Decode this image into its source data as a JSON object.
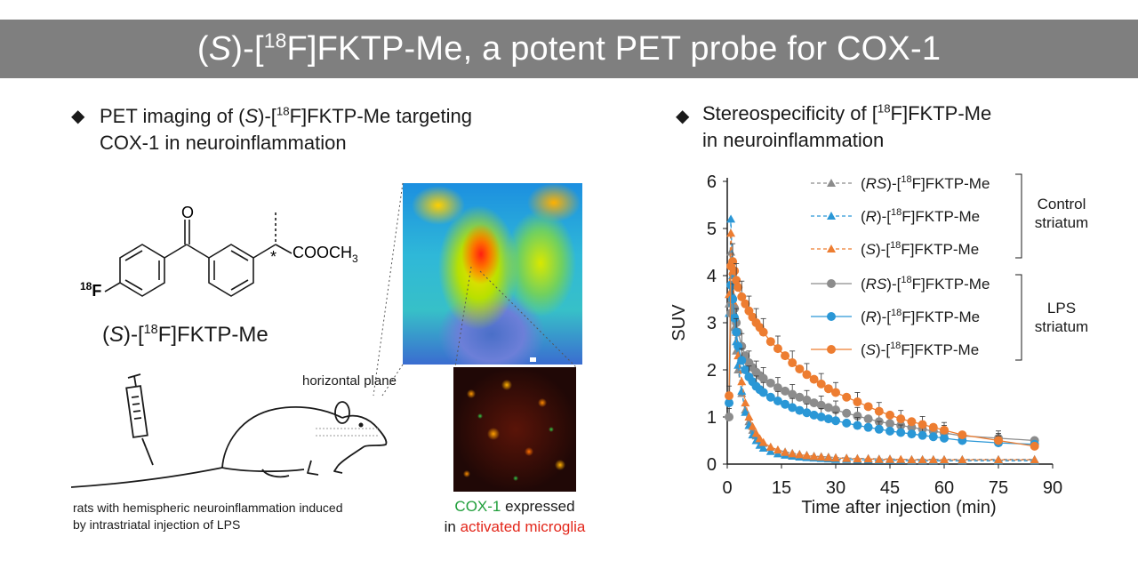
{
  "banner": {
    "title_open": "(",
    "title_S": "S",
    "title_mid": ")-[",
    "title_sup": "18",
    "title_rest": "F]FKTP-Me, a potent PET probe for COX-1"
  },
  "left_section": {
    "heading_pre": "PET imaging of (",
    "heading_S": "S",
    "heading_mid": ")-[",
    "heading_sup": "18",
    "heading_post": "F]FKTP-Me targeting",
    "heading_line2": "COX-1 in neuroinflammation",
    "molecule": {
      "carbonyl_O": "O",
      "ester": "COOCH",
      "ester_sub": "3",
      "stereo": "*",
      "fluorine_sup": "18",
      "fluorine": "F"
    },
    "compound_open": "(",
    "compound_S": "S",
    "compound_mid": ")-[",
    "compound_sup": "18",
    "compound_post": "F]FKTP-Me",
    "plane_label": "horizontal plane",
    "caption_line1": "rats with hemispheric neuroinflammation induced",
    "caption_line2": "by intrastriatal injection of LPS",
    "micro_caption_green": "COX-1",
    "micro_caption_after": " expressed",
    "micro_caption_in": "in ",
    "micro_caption_red": "activated microglia"
  },
  "right_section": {
    "heading_pre": "Stereospecificity of [",
    "heading_sup": "18",
    "heading_post": "F]FKTP-Me",
    "heading_line2": "in neuroinflammation"
  },
  "chart_data": {
    "type": "line",
    "xlabel": "Time after injection (min)",
    "ylabel": "SUV",
    "xlim": [
      0,
      90
    ],
    "ylim": [
      0,
      6
    ],
    "xticks": [
      0,
      15,
      30,
      45,
      60,
      75,
      90
    ],
    "yticks": [
      0,
      1,
      2,
      3,
      4,
      5,
      6
    ],
    "group_labels": [
      {
        "line1": "Control",
        "line2": "striatum"
      },
      {
        "line1": "LPS",
        "line2": "striatum"
      }
    ],
    "series": [
      {
        "name": "(RS)-[18F]FKTP-Me",
        "label_open": "(",
        "label_it": "RS",
        "label_mid": ")-[",
        "label_sup": "18",
        "label_post": "F]FKTP-Me",
        "group": "control",
        "marker": "triangle",
        "dash": true,
        "color": "#8c8c8c",
        "x": [
          0.5,
          1,
          1.5,
          2,
          2.5,
          3,
          4,
          5,
          6,
          7,
          8,
          9,
          10,
          12,
          14,
          16,
          18,
          20,
          22,
          24,
          26,
          28,
          30,
          33,
          36,
          39,
          42,
          45,
          48,
          51,
          54,
          57,
          60,
          65,
          75,
          85
        ],
        "y": [
          3.4,
          4.5,
          3.6,
          2.9,
          2.4,
          2.0,
          1.5,
          1.15,
          0.9,
          0.72,
          0.6,
          0.5,
          0.44,
          0.36,
          0.3,
          0.26,
          0.23,
          0.21,
          0.19,
          0.17,
          0.16,
          0.15,
          0.14,
          0.13,
          0.12,
          0.12,
          0.11,
          0.11,
          0.1,
          0.1,
          0.1,
          0.1,
          0.1,
          0.1,
          0.1,
          0.1
        ]
      },
      {
        "name": "(R)-[18F]FKTP-Me",
        "label_open": "(",
        "label_it": "R",
        "label_mid": ")-[",
        "label_sup": "18",
        "label_post": "F]FKTP-Me",
        "group": "control",
        "marker": "triangle",
        "dash": true,
        "color": "#2a97d6",
        "x": [
          0.5,
          1,
          1.5,
          2,
          2.5,
          3,
          4,
          5,
          6,
          7,
          8,
          9,
          10,
          12,
          14,
          16,
          18,
          20,
          22,
          24,
          26,
          28,
          30,
          33,
          36,
          39,
          42,
          45,
          48,
          51,
          54,
          57,
          60,
          65,
          75,
          85
        ],
        "y": [
          3.2,
          5.2,
          4.0,
          3.2,
          2.6,
          2.1,
          1.55,
          1.1,
          0.82,
          0.62,
          0.5,
          0.4,
          0.34,
          0.27,
          0.22,
          0.19,
          0.17,
          0.15,
          0.14,
          0.13,
          0.12,
          0.11,
          0.1,
          0.1,
          0.09,
          0.09,
          0.08,
          0.08,
          0.08,
          0.07,
          0.07,
          0.07,
          0.07,
          0.07,
          0.07,
          0.07
        ]
      },
      {
        "name": "(S)-[18F]FKTP-Me",
        "label_open": "(",
        "label_it": "S",
        "label_mid": ")-[",
        "label_sup": "18",
        "label_post": "F]FKTP-Me",
        "group": "control",
        "marker": "triangle",
        "dash": true,
        "color": "#ed7d31",
        "x": [
          0.5,
          1,
          1.5,
          2,
          2.5,
          3,
          4,
          5,
          6,
          7,
          8,
          9,
          10,
          12,
          14,
          16,
          18,
          20,
          22,
          24,
          26,
          28,
          30,
          33,
          36,
          39,
          42,
          45,
          48,
          51,
          54,
          57,
          60,
          65,
          75,
          85
        ],
        "y": [
          3.6,
          4.9,
          4.1,
          3.4,
          2.8,
          2.3,
          1.75,
          1.3,
          1.0,
          0.8,
          0.65,
          0.54,
          0.46,
          0.36,
          0.3,
          0.25,
          0.22,
          0.2,
          0.18,
          0.16,
          0.15,
          0.14,
          0.13,
          0.12,
          0.11,
          0.11,
          0.1,
          0.1,
          0.1,
          0.09,
          0.09,
          0.09,
          0.09,
          0.09,
          0.09,
          0.09
        ]
      },
      {
        "name": "(RS)-[18F]FKTP-Me",
        "label_open": "(",
        "label_it": "RS",
        "label_mid": ")-[",
        "label_sup": "18",
        "label_post": "F]FKTP-Me",
        "group": "lps",
        "marker": "circle",
        "dash": false,
        "color": "#8c8c8c",
        "x": [
          0.5,
          1,
          1.5,
          2,
          2.5,
          3,
          4,
          5,
          6,
          7,
          8,
          9,
          10,
          12,
          14,
          16,
          18,
          20,
          22,
          24,
          26,
          28,
          30,
          33,
          36,
          39,
          42,
          45,
          48,
          51,
          54,
          57,
          60,
          65,
          75,
          85
        ],
        "y": [
          1.0,
          3.2,
          3.5,
          3.3,
          3.0,
          2.8,
          2.5,
          2.3,
          2.15,
          2.05,
          1.95,
          1.88,
          1.82,
          1.72,
          1.62,
          1.55,
          1.48,
          1.42,
          1.36,
          1.3,
          1.25,
          1.2,
          1.15,
          1.08,
          1.02,
          0.96,
          0.9,
          0.86,
          0.82,
          0.78,
          0.74,
          0.7,
          0.66,
          0.6,
          0.55,
          0.5
        ]
      },
      {
        "name": "(R)-[18F]FKTP-Me",
        "label_open": "(",
        "label_it": "R",
        "label_mid": ")-[",
        "label_sup": "18",
        "label_post": "F]FKTP-Me",
        "group": "lps",
        "marker": "circle",
        "dash": false,
        "color": "#2a97d6",
        "x": [
          0.5,
          1,
          1.5,
          2,
          2.5,
          3,
          4,
          5,
          6,
          7,
          8,
          9,
          10,
          12,
          14,
          16,
          18,
          20,
          22,
          24,
          26,
          28,
          30,
          33,
          36,
          39,
          42,
          45,
          48,
          51,
          54,
          57,
          60,
          65,
          75,
          85
        ],
        "y": [
          1.3,
          3.8,
          3.5,
          3.1,
          2.8,
          2.5,
          2.2,
          2.0,
          1.85,
          1.75,
          1.65,
          1.58,
          1.52,
          1.42,
          1.34,
          1.27,
          1.2,
          1.14,
          1.09,
          1.04,
          1.0,
          0.96,
          0.92,
          0.87,
          0.82,
          0.78,
          0.74,
          0.7,
          0.67,
          0.64,
          0.61,
          0.58,
          0.55,
          0.5,
          0.45,
          0.42
        ]
      },
      {
        "name": "(S)-[18F]FKTP-Me",
        "label_open": "(",
        "label_it": "S",
        "label_mid": ")-[",
        "label_sup": "18",
        "label_post": "F]FKTP-Me",
        "group": "lps",
        "marker": "circle",
        "dash": false,
        "color": "#ed7d31",
        "x": [
          0.5,
          1,
          1.5,
          2,
          2.5,
          3,
          4,
          5,
          6,
          7,
          8,
          9,
          10,
          12,
          14,
          16,
          18,
          20,
          22,
          24,
          26,
          28,
          30,
          33,
          36,
          39,
          42,
          45,
          48,
          51,
          54,
          57,
          60,
          65,
          75,
          85
        ],
        "y": [
          1.45,
          4.2,
          4.3,
          4.1,
          3.9,
          3.75,
          3.55,
          3.4,
          3.25,
          3.12,
          3.0,
          2.9,
          2.8,
          2.6,
          2.45,
          2.3,
          2.15,
          2.02,
          1.9,
          1.8,
          1.7,
          1.6,
          1.52,
          1.42,
          1.32,
          1.22,
          1.12,
          1.04,
          0.96,
          0.9,
          0.84,
          0.78,
          0.72,
          0.62,
          0.5,
          0.38
        ]
      }
    ]
  }
}
